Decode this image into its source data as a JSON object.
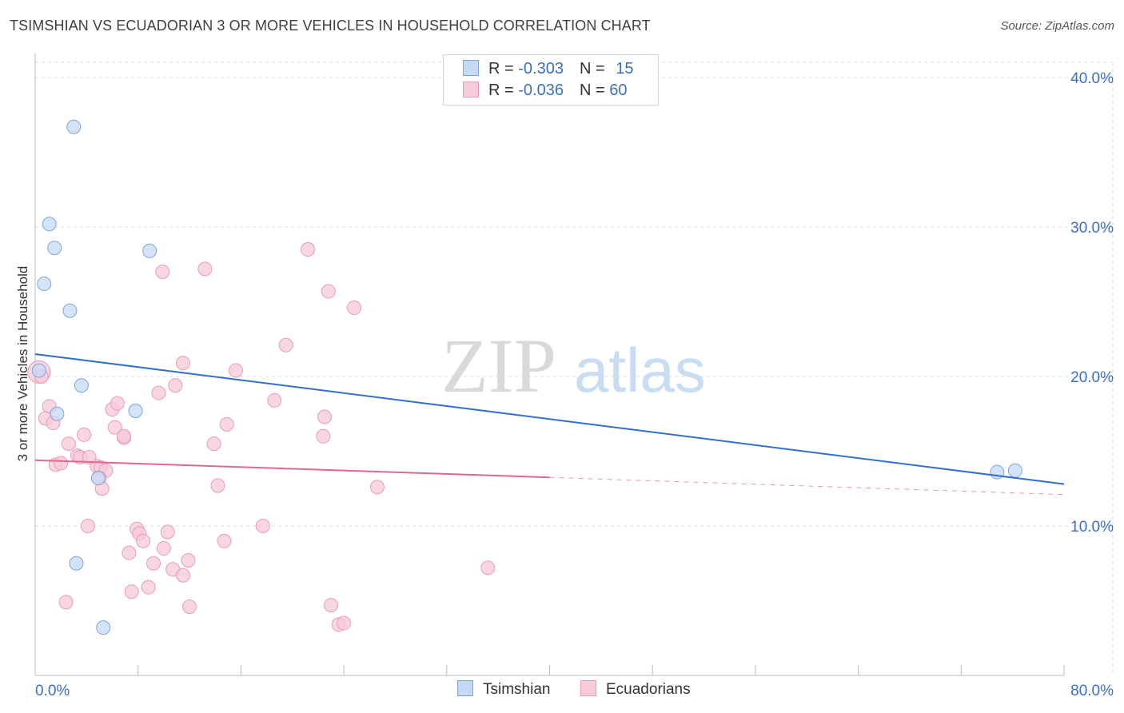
{
  "title": "TSIMSHIAN VS ECUADORIAN 3 OR MORE VEHICLES IN HOUSEHOLD CORRELATION CHART",
  "source": "Source: ZipAtlas.com",
  "watermark": {
    "zip": "ZIP",
    "atlas": "atlas"
  },
  "legend": {
    "rows": [
      {
        "r_label": "R = ",
        "r_value": "-0.303",
        "n_label": "N = ",
        "n_value": "15"
      },
      {
        "r_label": "R = ",
        "r_value": "-0.036",
        "n_label": "N = ",
        "n_value": "60"
      }
    ]
  },
  "bottom_legend": {
    "series1": "Tsimshian",
    "series2": "Ecuadorians"
  },
  "colors": {
    "blue_fill": "#c5d9f5",
    "blue_stroke": "#7aa6e0",
    "blue_line": "#2f6fd0",
    "pink_fill": "#f7cad8",
    "pink_stroke": "#ea9bb5",
    "pink_line": "#e0678f",
    "axis_label": "#3b6fc4",
    "grid": "#dddddd"
  },
  "chart_data": {
    "type": "scatter",
    "title": "TSIMSHIAN VS ECUADORIAN 3 OR MORE VEHICLES IN HOUSEHOLD CORRELATION CHART",
    "xlabel": "",
    "ylabel": "3 or more Vehicles in Household",
    "xlim": [
      0,
      80
    ],
    "ylim": [
      0,
      42
    ],
    "x_tick_labels": [
      "0.0%",
      "80.0%"
    ],
    "y_ticks": [
      10,
      20,
      30,
      40
    ],
    "y_tick_labels": [
      "10.0%",
      "20.0%",
      "30.0%",
      "40.0%"
    ],
    "grid": true,
    "legend_position": "top-center",
    "series": [
      {
        "name": "Tsimshian",
        "r": -0.303,
        "n": 15,
        "points": [
          [
            3.0,
            36.7
          ],
          [
            1.1,
            30.2
          ],
          [
            1.5,
            28.6
          ],
          [
            8.9,
            28.4
          ],
          [
            0.7,
            26.2
          ],
          [
            2.7,
            24.4
          ],
          [
            0.3,
            20.4
          ],
          [
            3.6,
            19.4
          ],
          [
            1.7,
            17.5
          ],
          [
            7.8,
            17.7
          ],
          [
            4.9,
            13.2
          ],
          [
            3.2,
            7.5
          ],
          [
            5.3,
            3.2
          ],
          [
            74.8,
            13.6
          ],
          [
            76.2,
            13.7
          ]
        ],
        "trend": {
          "x": [
            0,
            80
          ],
          "y": [
            21.5,
            12.8
          ],
          "dashed_from": null
        }
      },
      {
        "name": "Ecuadorians",
        "r": -0.036,
        "n": 60,
        "points": [
          [
            0.3,
            20.3
          ],
          [
            0.5,
            20.0
          ],
          [
            1.1,
            18.0
          ],
          [
            0.8,
            17.2
          ],
          [
            1.4,
            16.9
          ],
          [
            2.6,
            15.5
          ],
          [
            3.3,
            14.7
          ],
          [
            3.5,
            14.6
          ],
          [
            1.6,
            14.1
          ],
          [
            2.0,
            14.2
          ],
          [
            4.8,
            14.0
          ],
          [
            5.1,
            13.9
          ],
          [
            5.5,
            13.7
          ],
          [
            5.0,
            13.2
          ],
          [
            5.2,
            12.5
          ],
          [
            3.8,
            16.1
          ],
          [
            4.2,
            14.6
          ],
          [
            6.0,
            17.8
          ],
          [
            6.4,
            18.2
          ],
          [
            6.2,
            16.6
          ],
          [
            6.9,
            15.9
          ],
          [
            6.9,
            16.0
          ],
          [
            9.6,
            18.9
          ],
          [
            10.9,
            19.4
          ],
          [
            11.5,
            20.9
          ],
          [
            9.9,
            27.0
          ],
          [
            13.2,
            27.2
          ],
          [
            15.6,
            20.4
          ],
          [
            13.9,
            15.5
          ],
          [
            14.2,
            12.7
          ],
          [
            14.9,
            16.8
          ],
          [
            18.6,
            18.4
          ],
          [
            19.5,
            22.1
          ],
          [
            21.2,
            28.5
          ],
          [
            22.8,
            25.7
          ],
          [
            24.8,
            24.6
          ],
          [
            22.5,
            17.3
          ],
          [
            22.4,
            16.0
          ],
          [
            26.6,
            12.6
          ],
          [
            4.1,
            10.0
          ],
          [
            7.9,
            9.8
          ],
          [
            8.1,
            9.5
          ],
          [
            8.4,
            9.0
          ],
          [
            10.3,
            9.6
          ],
          [
            7.3,
            8.2
          ],
          [
            10.0,
            8.5
          ],
          [
            9.2,
            7.5
          ],
          [
            10.7,
            7.1
          ],
          [
            11.9,
            7.7
          ],
          [
            11.5,
            6.7
          ],
          [
            7.5,
            5.6
          ],
          [
            8.8,
            5.9
          ],
          [
            12.0,
            4.6
          ],
          [
            2.4,
            4.9
          ],
          [
            14.7,
            9.0
          ],
          [
            17.7,
            10.0
          ],
          [
            23.0,
            4.7
          ],
          [
            23.6,
            3.4
          ],
          [
            24.0,
            3.5
          ],
          [
            35.2,
            7.2
          ]
        ],
        "trend": {
          "x": [
            0,
            80
          ],
          "y": [
            14.4,
            12.1
          ],
          "dashed_from": 40
        }
      }
    ]
  }
}
